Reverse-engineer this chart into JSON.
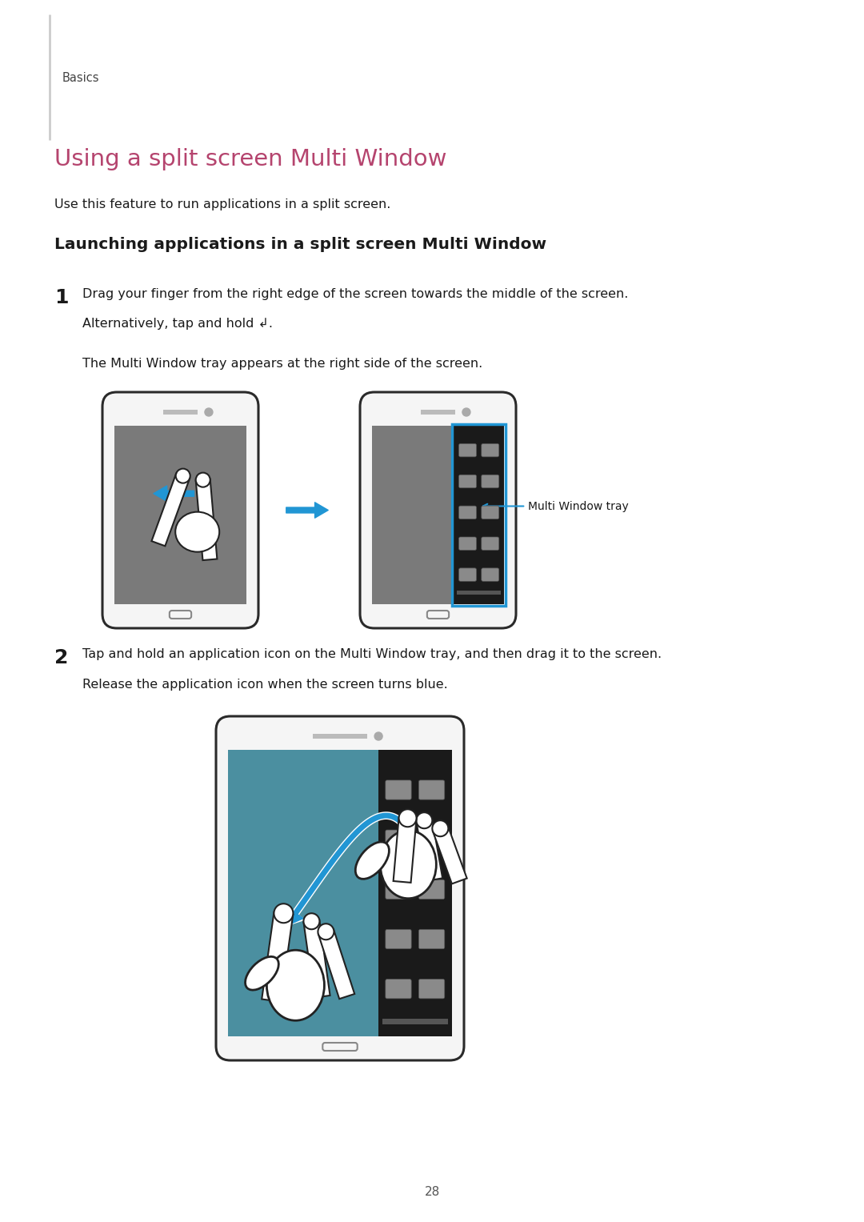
{
  "background_color": "#ffffff",
  "page_width": 10.8,
  "page_height": 15.27,
  "sidebar_text": "Basics",
  "title": "Using a split screen Multi Window",
  "title_color": "#b5446e",
  "subtitle": "Use this feature to run applications in a split screen.",
  "section_header": "Launching applications in a split screen Multi Window",
  "step1_num": "1",
  "step1_line1": "Drag your finger from the right edge of the screen towards the middle of the screen.",
  "step1_line2": "Alternatively, tap and hold ↲.",
  "step1_line3": "The Multi Window tray appears at the right side of the screen.",
  "arrow_label": "Multi Window tray",
  "step2_num": "2",
  "step2_line1": "Tap and hold an application icon on the Multi Window tray, and then drag it to the screen.",
  "step2_line2": "Release the application icon when the screen turns blue.",
  "page_number": "28",
  "text_color": "#1a1a1a",
  "arrow_blue": "#2196d4",
  "tray_border_color": "#2196d4",
  "screen_gray": "#7a7a7a",
  "tray_black": "#1a1a1a",
  "icon_gray": "#8a8a8a",
  "blue_screen": "#4b8fa0",
  "device_border": "#2a2a2a",
  "device_body": "#f5f5f5"
}
